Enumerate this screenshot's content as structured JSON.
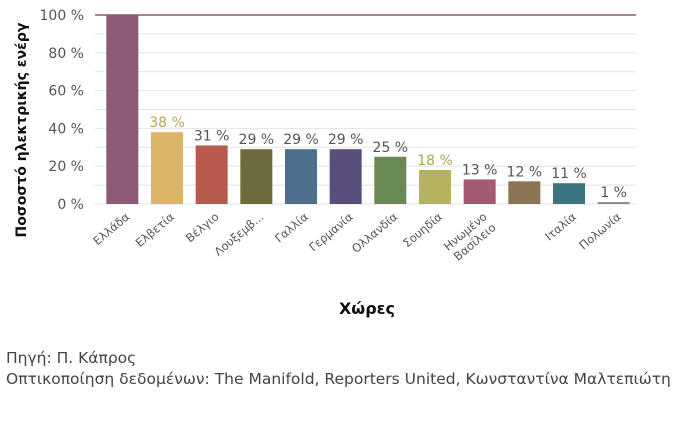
{
  "chart_data": {
    "type": "bar",
    "ylabel": "Ποσοστό ηλεκτρικής ενέργ",
    "xlabel": "Χώρες",
    "ylim": [
      0,
      100
    ],
    "yticks": [
      "0 %",
      "20 %",
      "40 %",
      "60 %",
      "80 %",
      "100 %"
    ],
    "categories": [
      "Ελλάδα",
      "Ελβετία",
      "Βέλγιο",
      "Λουξεμβ...",
      "Γαλλία",
      "Γερμανία",
      "Ολλανδία",
      "Σουηδία",
      "Ηνωμένο Βασίλειο",
      "",
      "Ιταλία",
      "Πολωνία"
    ],
    "values": [
      100,
      38,
      31,
      29,
      29,
      29,
      25,
      18,
      13,
      12,
      11,
      1
    ],
    "data_labels": [
      "",
      "38 %",
      "31 %",
      "29 %",
      "29 %",
      "29 %",
      "25 %",
      "18 %",
      "13 %",
      "12 %",
      "11 %",
      "1 %"
    ],
    "colors": [
      "#8a5a77",
      "#dbb467",
      "#b75a4c",
      "#6d6a3c",
      "#4e6e8e",
      "#5a4e7c",
      "#6a8a55",
      "#b5b260",
      "#a35a72",
      "#8c7456",
      "#3d7482",
      "#7d8a8e"
    ],
    "label_colors": [
      "#555555",
      "#b5a65a",
      "#555555",
      "#555555",
      "#555555",
      "#555555",
      "#555555",
      "#a8a655",
      "#555555",
      "#555555",
      "#555555",
      "#555555"
    ],
    "grid": true
  },
  "footer": {
    "source": "Πηγή: Π. Κάπρος",
    "credits": "Οπτικοποίηση δεδομένων: The Manifold, Reporters United, Κωνσταντίνα Μαλτεπιώτη"
  }
}
